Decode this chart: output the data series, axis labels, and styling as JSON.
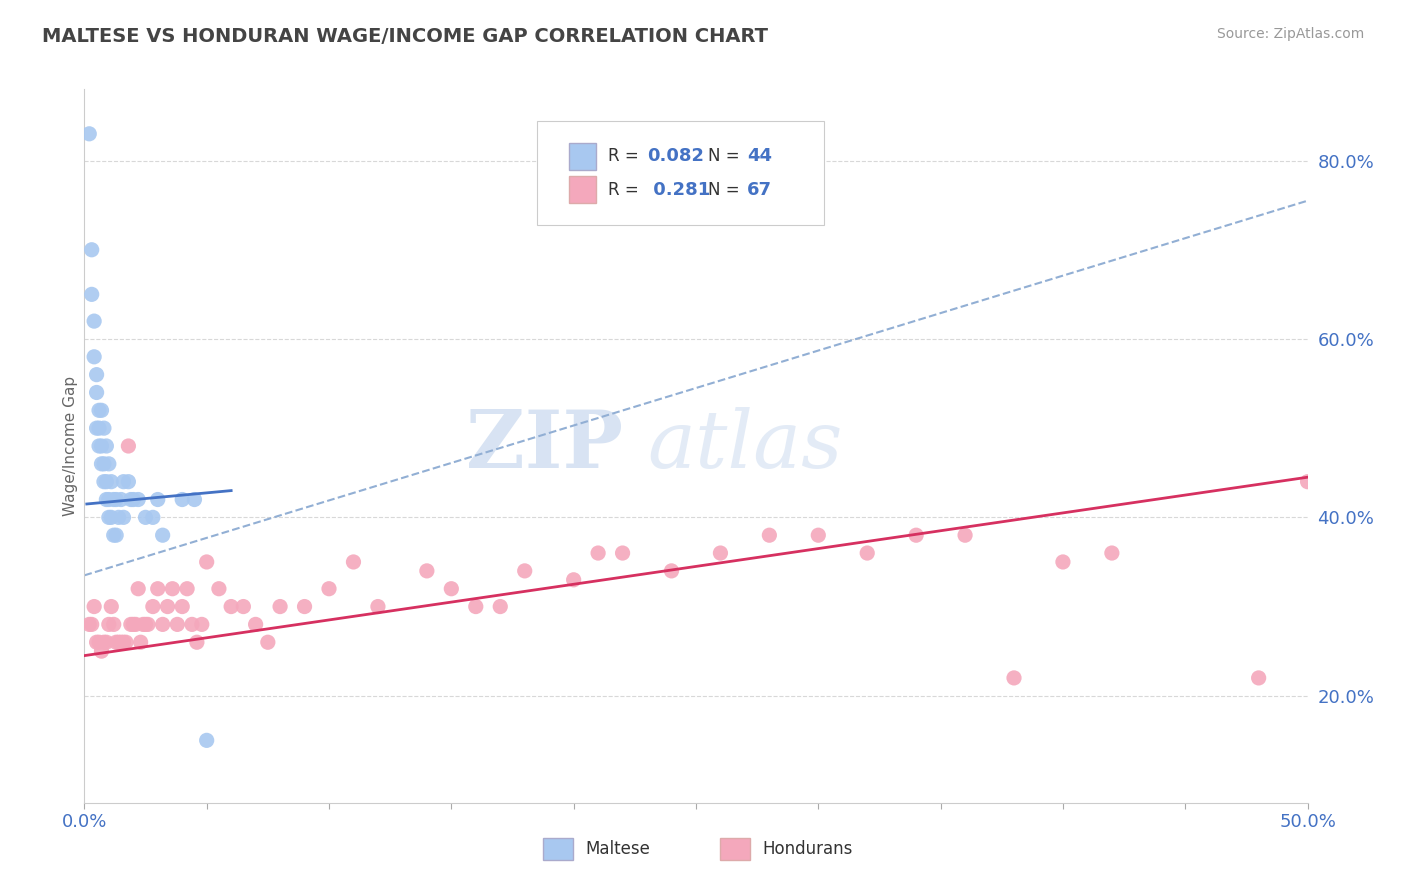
{
  "title": "MALTESE VS HONDURAN WAGE/INCOME GAP CORRELATION CHART",
  "source": "Source: ZipAtlas.com",
  "ylabel": "Wage/Income Gap",
  "xlim": [
    0.0,
    0.5
  ],
  "ylim": [
    0.08,
    0.88
  ],
  "xticks": [
    0.0,
    0.05,
    0.1,
    0.15,
    0.2,
    0.25,
    0.3,
    0.35,
    0.4,
    0.45,
    0.5
  ],
  "yticks": [
    0.2,
    0.4,
    0.6,
    0.8
  ],
  "ytick_labels": [
    "20.0%",
    "40.0%",
    "60.0%",
    "80.0%"
  ],
  "maltese_color": "#a8c8f0",
  "honduran_color": "#f4a8bc",
  "maltese_line_color": "#4472c4",
  "honduran_line_color": "#d63060",
  "dash_line_color": "#92afd4",
  "title_color": "#444444",
  "axis_label_color": "#4472c4",
  "watermark_zip": "ZIP",
  "watermark_atlas": "atlas",
  "background_color": "#ffffff",
  "grid_color": "#d8d8d8",
  "maltese_x": [
    0.002,
    0.003,
    0.003,
    0.004,
    0.004,
    0.005,
    0.005,
    0.005,
    0.006,
    0.006,
    0.006,
    0.007,
    0.007,
    0.007,
    0.008,
    0.008,
    0.008,
    0.009,
    0.009,
    0.009,
    0.01,
    0.01,
    0.01,
    0.011,
    0.011,
    0.012,
    0.012,
    0.013,
    0.013,
    0.014,
    0.015,
    0.016,
    0.016,
    0.018,
    0.019,
    0.02,
    0.022,
    0.025,
    0.028,
    0.03,
    0.032,
    0.04,
    0.045,
    0.05
  ],
  "maltese_y": [
    0.83,
    0.7,
    0.65,
    0.62,
    0.58,
    0.56,
    0.54,
    0.5,
    0.52,
    0.5,
    0.48,
    0.52,
    0.48,
    0.46,
    0.5,
    0.46,
    0.44,
    0.48,
    0.44,
    0.42,
    0.46,
    0.42,
    0.4,
    0.44,
    0.4,
    0.42,
    0.38,
    0.42,
    0.38,
    0.4,
    0.42,
    0.44,
    0.4,
    0.44,
    0.42,
    0.42,
    0.42,
    0.4,
    0.4,
    0.42,
    0.38,
    0.42,
    0.42,
    0.15
  ],
  "honduran_x": [
    0.002,
    0.003,
    0.004,
    0.005,
    0.006,
    0.007,
    0.008,
    0.009,
    0.01,
    0.011,
    0.012,
    0.013,
    0.014,
    0.015,
    0.016,
    0.017,
    0.018,
    0.019,
    0.02,
    0.021,
    0.022,
    0.023,
    0.024,
    0.025,
    0.026,
    0.028,
    0.03,
    0.032,
    0.034,
    0.036,
    0.038,
    0.04,
    0.042,
    0.044,
    0.046,
    0.048,
    0.05,
    0.055,
    0.06,
    0.065,
    0.07,
    0.075,
    0.08,
    0.09,
    0.1,
    0.11,
    0.12,
    0.14,
    0.15,
    0.16,
    0.17,
    0.18,
    0.2,
    0.21,
    0.22,
    0.24,
    0.26,
    0.28,
    0.3,
    0.32,
    0.34,
    0.36,
    0.38,
    0.4,
    0.42,
    0.48,
    0.5
  ],
  "honduran_y": [
    0.28,
    0.28,
    0.3,
    0.26,
    0.26,
    0.25,
    0.26,
    0.26,
    0.28,
    0.3,
    0.28,
    0.26,
    0.26,
    0.26,
    0.26,
    0.26,
    0.48,
    0.28,
    0.28,
    0.28,
    0.32,
    0.26,
    0.28,
    0.28,
    0.28,
    0.3,
    0.32,
    0.28,
    0.3,
    0.32,
    0.28,
    0.3,
    0.32,
    0.28,
    0.26,
    0.28,
    0.35,
    0.32,
    0.3,
    0.3,
    0.28,
    0.26,
    0.3,
    0.3,
    0.32,
    0.35,
    0.3,
    0.34,
    0.32,
    0.3,
    0.3,
    0.34,
    0.33,
    0.36,
    0.36,
    0.34,
    0.36,
    0.38,
    0.38,
    0.36,
    0.38,
    0.38,
    0.22,
    0.35,
    0.36,
    0.22,
    0.44
  ],
  "maltese_trend_x": [
    0.001,
    0.06
  ],
  "maltese_trend_y": [
    0.415,
    0.43
  ],
  "honduran_trend_x": [
    0.0,
    0.5
  ],
  "honduran_trend_y": [
    0.245,
    0.445
  ],
  "dash_trend_x": [
    0.0,
    0.5
  ],
  "dash_trend_y": [
    0.335,
    0.755
  ]
}
